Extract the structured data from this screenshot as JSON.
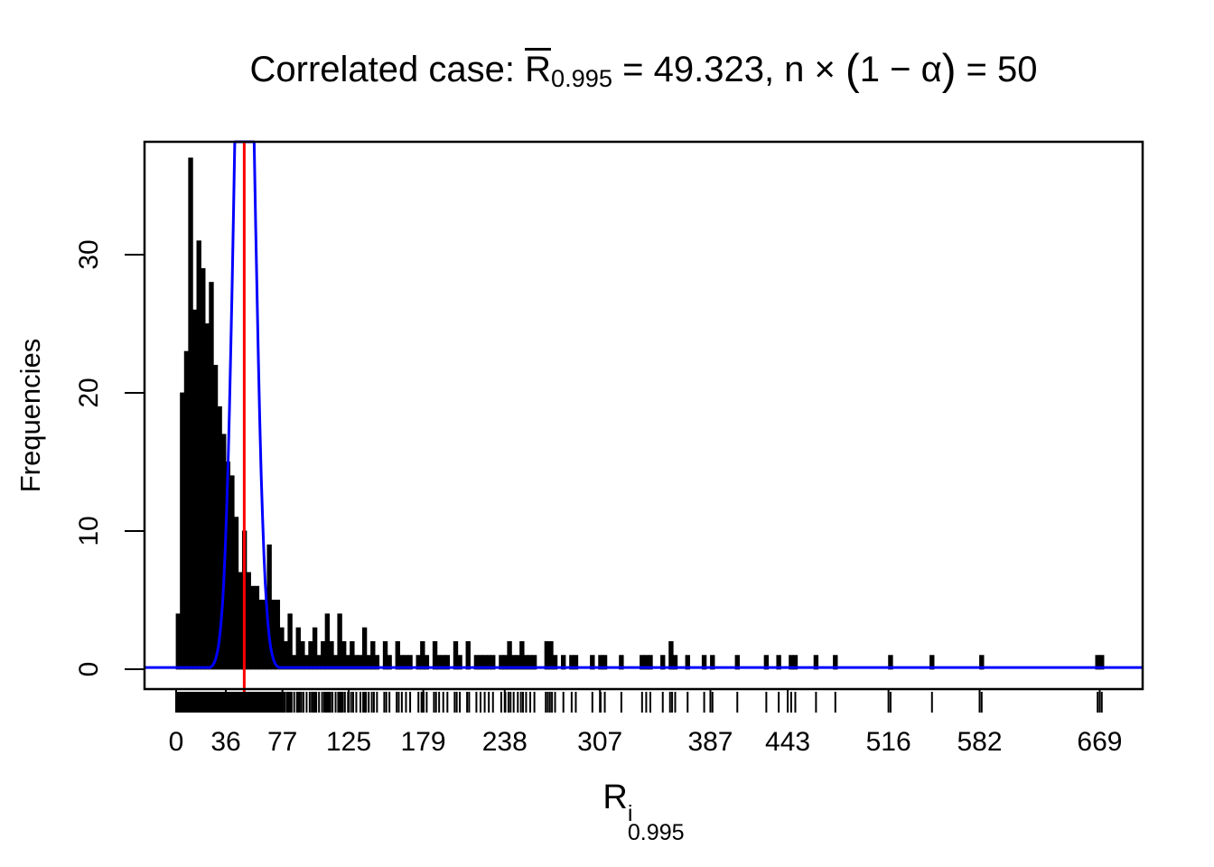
{
  "chart_data": {
    "type": "bar",
    "subtype": "histogram",
    "title": "Correlated case: R̅_0.995 = 49.323, n × (1 − α) = 50",
    "xlabel": "R^i_0.995",
    "ylabel": "Frequencies",
    "grid": false,
    "legend": false,
    "bin_width": 3,
    "bins": [
      [
        0,
        4
      ],
      [
        3,
        20
      ],
      [
        6,
        23
      ],
      [
        9,
        37
      ],
      [
        12,
        26
      ],
      [
        15,
        31
      ],
      [
        18,
        29
      ],
      [
        21,
        25
      ],
      [
        24,
        28
      ],
      [
        27,
        22
      ],
      [
        30,
        19
      ],
      [
        33,
        17
      ],
      [
        36,
        15
      ],
      [
        39,
        14
      ],
      [
        42,
        11
      ],
      [
        45,
        7
      ],
      [
        48,
        10
      ],
      [
        51,
        7
      ],
      [
        54,
        6
      ],
      [
        57,
        6
      ],
      [
        60,
        5
      ],
      [
        63,
        5
      ],
      [
        66,
        9
      ],
      [
        69,
        5
      ],
      [
        72,
        5
      ],
      [
        75,
        3
      ],
      [
        78,
        2
      ],
      [
        81,
        4
      ],
      [
        84,
        1
      ],
      [
        87,
        3
      ],
      [
        90,
        2
      ],
      [
        93,
        1
      ],
      [
        96,
        2
      ],
      [
        99,
        3
      ],
      [
        102,
        1
      ],
      [
        105,
        2
      ],
      [
        108,
        4
      ],
      [
        111,
        2
      ],
      [
        114,
        1
      ],
      [
        117,
        4
      ],
      [
        120,
        2
      ],
      [
        123,
        1
      ],
      [
        126,
        2
      ],
      [
        129,
        1
      ],
      [
        132,
        1
      ],
      [
        135,
        3
      ],
      [
        138,
        1
      ],
      [
        141,
        2
      ],
      [
        144,
        1
      ],
      [
        150,
        2
      ],
      [
        153,
        1
      ],
      [
        159,
        2
      ],
      [
        162,
        1
      ],
      [
        165,
        1
      ],
      [
        168,
        1
      ],
      [
        174,
        1
      ],
      [
        177,
        2
      ],
      [
        180,
        1
      ],
      [
        186,
        2
      ],
      [
        189,
        1
      ],
      [
        192,
        1
      ],
      [
        195,
        1
      ],
      [
        201,
        2
      ],
      [
        204,
        1
      ],
      [
        210,
        2
      ],
      [
        216,
        1
      ],
      [
        219,
        1
      ],
      [
        222,
        1
      ],
      [
        225,
        1
      ],
      [
        228,
        1
      ],
      [
        234,
        1
      ],
      [
        237,
        1
      ],
      [
        240,
        2
      ],
      [
        243,
        1
      ],
      [
        246,
        1
      ],
      [
        249,
        2
      ],
      [
        252,
        1
      ],
      [
        255,
        1
      ],
      [
        258,
        1
      ],
      [
        267,
        2
      ],
      [
        270,
        2
      ],
      [
        273,
        1
      ],
      [
        279,
        1
      ],
      [
        285,
        1
      ],
      [
        288,
        1
      ],
      [
        300,
        1
      ],
      [
        306,
        1
      ],
      [
        309,
        1
      ],
      [
        321,
        1
      ],
      [
        336,
        1
      ],
      [
        339,
        1
      ],
      [
        342,
        1
      ],
      [
        351,
        1
      ],
      [
        357,
        2
      ],
      [
        360,
        1
      ],
      [
        369,
        1
      ],
      [
        381,
        1
      ],
      [
        387,
        1
      ],
      [
        405,
        1
      ],
      [
        426,
        1
      ],
      [
        435,
        1
      ],
      [
        444,
        1
      ],
      [
        447,
        1
      ],
      [
        462,
        1
      ],
      [
        476,
        1
      ],
      [
        516,
        1
      ],
      [
        546,
        1
      ],
      [
        582,
        1
      ],
      [
        666,
        1
      ],
      [
        669,
        1
      ]
    ],
    "x_axis": {
      "tick_values": [
        0,
        36,
        77,
        125,
        179,
        238,
        307,
        387,
        443,
        516,
        582,
        669
      ],
      "usr": [
        -22.9,
        700.1
      ]
    },
    "y_axis": {
      "tick_values": [
        0,
        10,
        20,
        30
      ],
      "usr": [
        -1.44,
        38.17
      ]
    },
    "overlays": {
      "mean_vline": {
        "value": 49.323,
        "color": "#ff0000"
      },
      "density_curve": {
        "shape": "gaussian",
        "mean": 49.5,
        "sd": 7,
        "peak": 63,
        "floor": 0.12,
        "color": "#0000ff"
      },
      "rug": {
        "side": "bottom",
        "color": "#000000"
      }
    }
  },
  "title": {
    "prefix": "Correlated case: ",
    "rbar": "R",
    "rbar_sub": "0.995",
    "mid": " = 49.323, n × ",
    "paren_open": "(",
    "paren_inner": "1 − α",
    "paren_close": ")",
    "suffix": " = 50"
  },
  "xlabel": {
    "base": "R",
    "sup": "i",
    "sub": "0.995"
  },
  "ylabel": "Frequencies",
  "colors": {
    "bars": "#000000",
    "curve": "#0000ff",
    "vline": "#ff0000",
    "axis": "#000000",
    "background": "#ffffff"
  }
}
